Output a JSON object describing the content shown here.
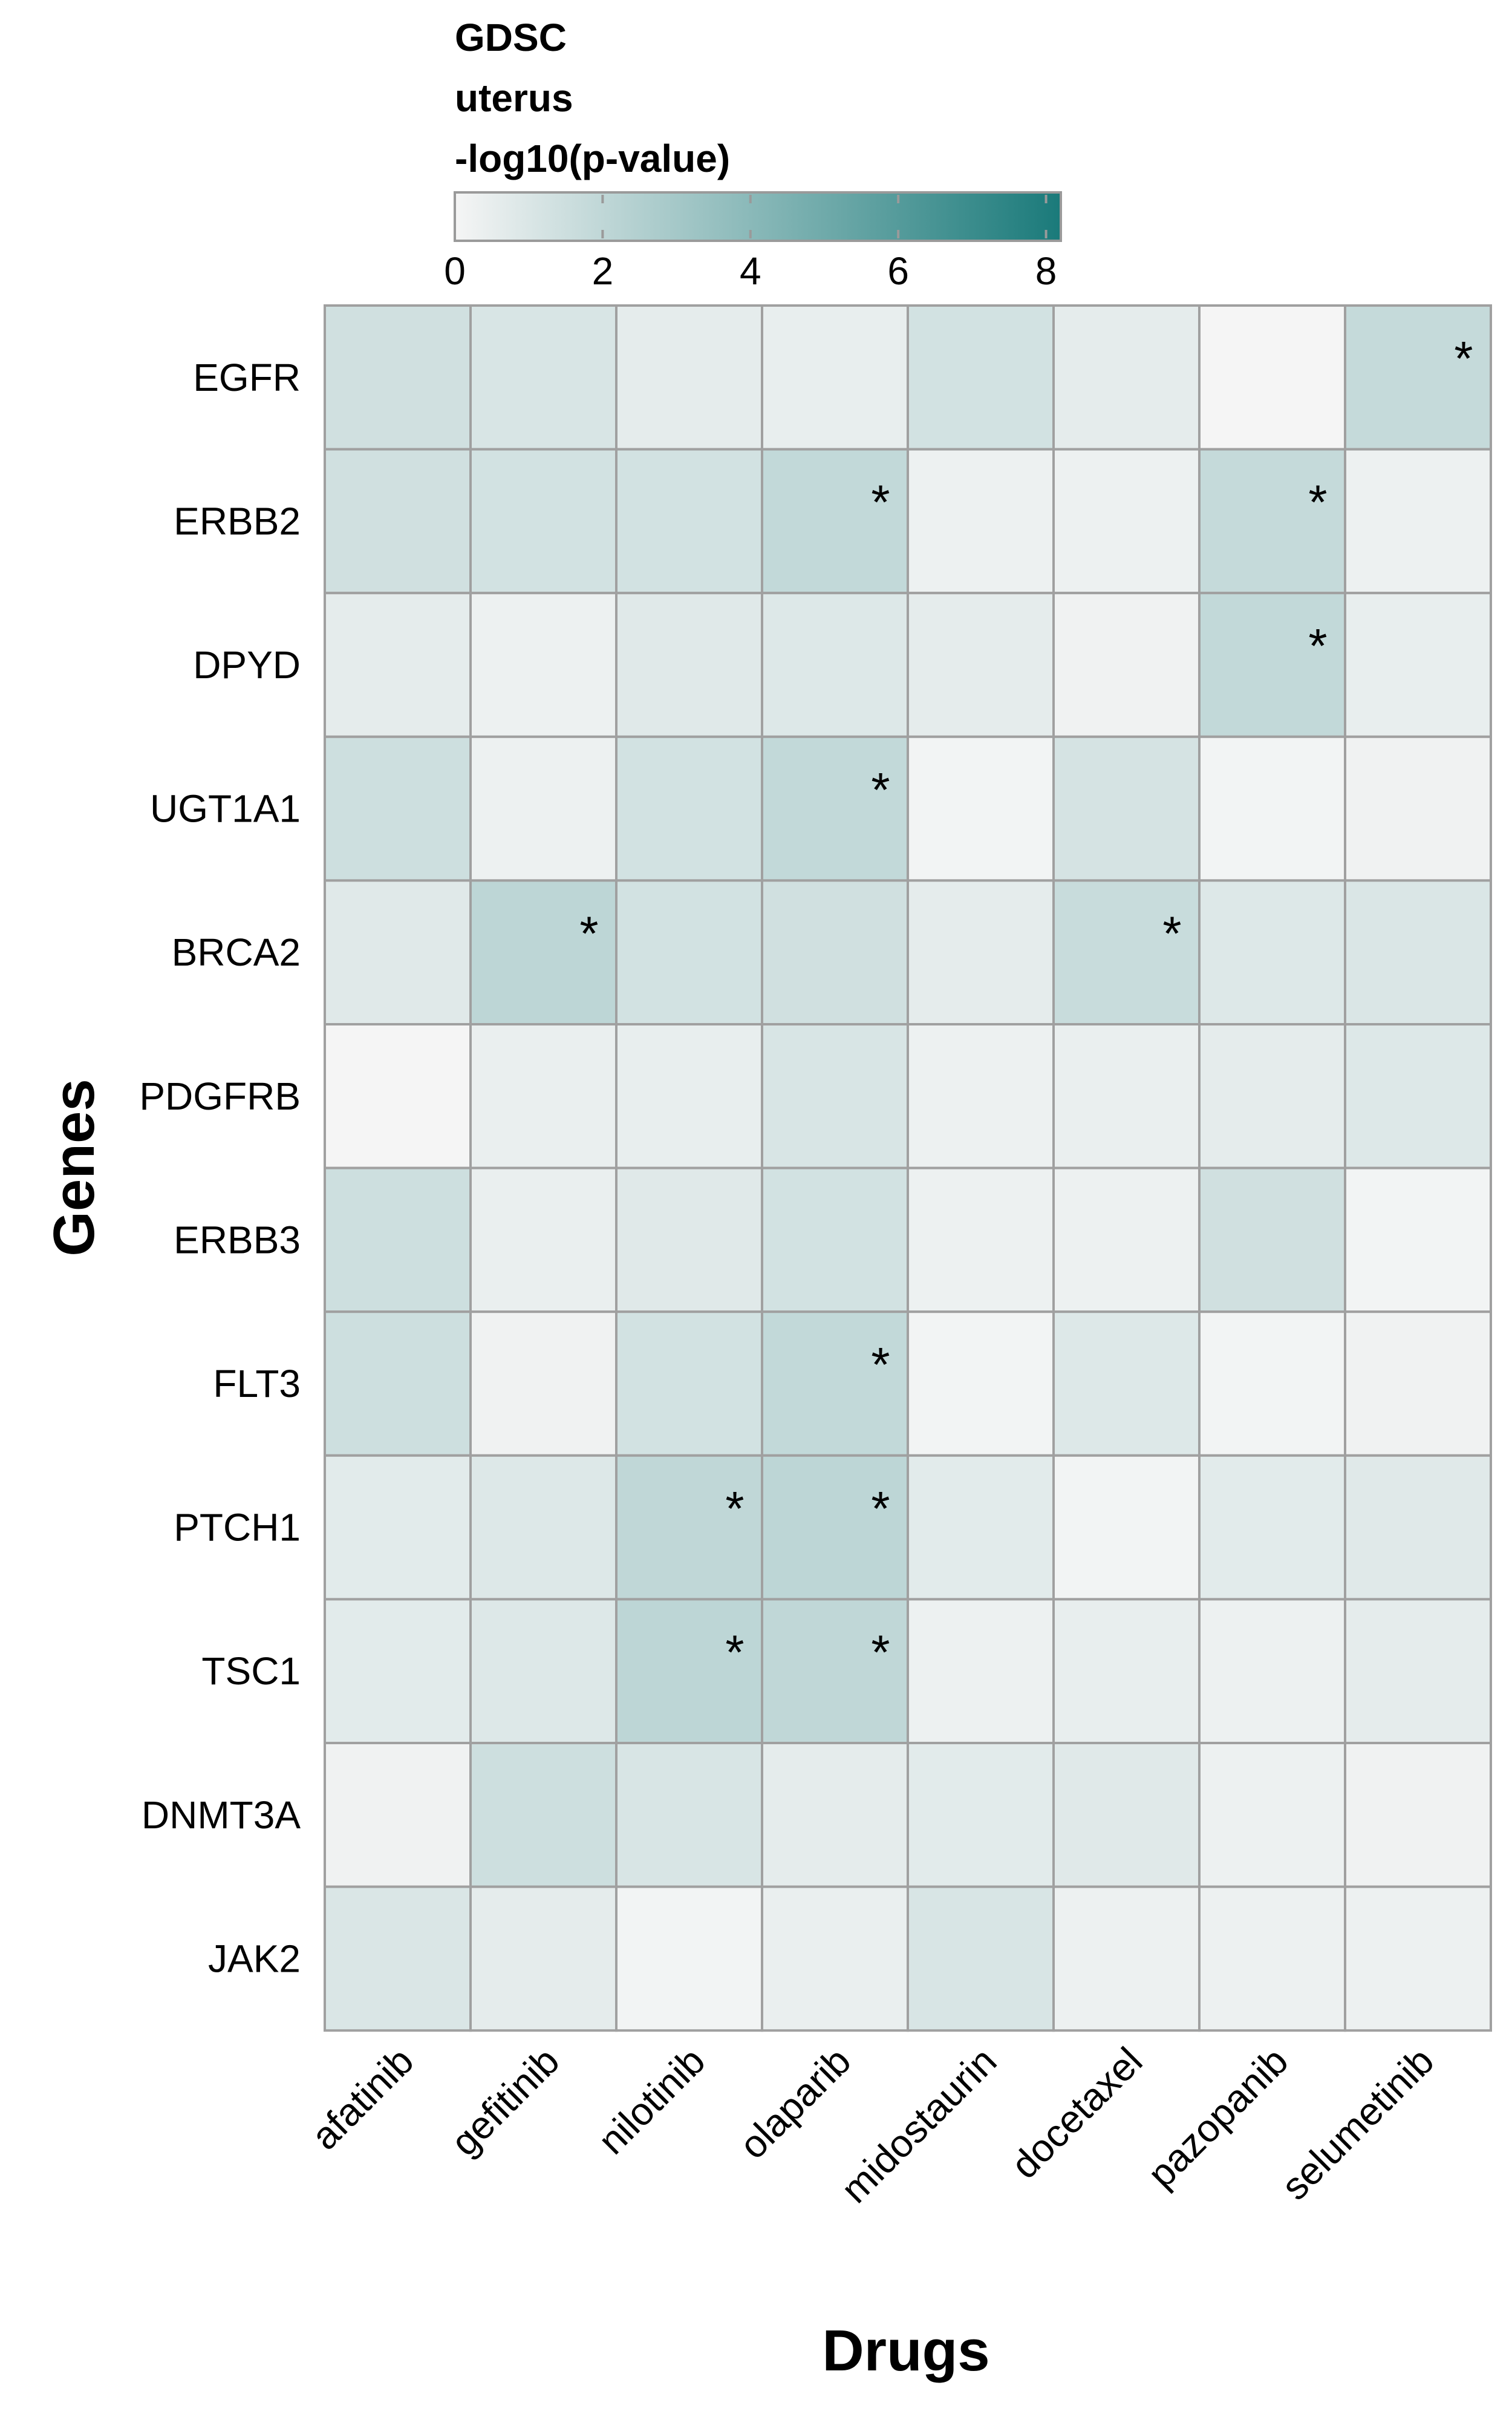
{
  "chart_data": {
    "type": "heatmap",
    "title": "",
    "xlabel": "Drugs",
    "ylabel": "Genes",
    "legend": {
      "title_lines": [
        "GDSC",
        "uterus",
        "-log10(p-value)"
      ],
      "ticks": [
        0,
        2,
        4,
        6,
        8
      ],
      "range": [
        0,
        8.2
      ],
      "color_low": "#f5f5f5",
      "color_high": "#1a7a7a",
      "placement": "top"
    },
    "x_categories": [
      "afatinib",
      "gefitinib",
      "nilotinib",
      "olaparib",
      "midostaurin",
      "docetaxel",
      "pazopanib",
      "selumetinib"
    ],
    "y_categories": [
      "EGFR",
      "ERBB2",
      "DPYD",
      "UGT1A1",
      "BRCA2",
      "PDGFRB",
      "ERBB3",
      "FLT3",
      "PTCH1",
      "TSC1",
      "DNMT3A",
      "JAK2"
    ],
    "values": [
      [
        1.4,
        1.1,
        0.6,
        0.5,
        1.3,
        0.6,
        0.0,
        1.8
      ],
      [
        1.4,
        1.3,
        1.3,
        1.9,
        0.3,
        0.3,
        1.8,
        0.3
      ],
      [
        0.6,
        0.3,
        0.8,
        0.9,
        0.6,
        0.2,
        1.9,
        0.5
      ],
      [
        1.5,
        0.3,
        1.3,
        1.9,
        0.1,
        1.2,
        0.1,
        0.2
      ],
      [
        0.8,
        2.1,
        1.3,
        1.4,
        0.6,
        1.7,
        0.9,
        1.0
      ],
      [
        0.0,
        0.4,
        0.5,
        1.1,
        0.3,
        0.4,
        0.6,
        0.9
      ],
      [
        1.5,
        0.4,
        0.8,
        1.3,
        0.3,
        0.3,
        1.4,
        0.1
      ],
      [
        1.5,
        0.2,
        1.3,
        1.9,
        0.1,
        0.9,
        0.1,
        0.2
      ],
      [
        0.7,
        0.9,
        2.0,
        2.1,
        0.7,
        0.1,
        0.7,
        0.8
      ],
      [
        0.7,
        0.9,
        2.1,
        2.0,
        0.3,
        0.5,
        0.3,
        0.6
      ],
      [
        0.2,
        1.5,
        1.1,
        0.6,
        0.7,
        0.8,
        0.3,
        0.2
      ],
      [
        1.0,
        0.6,
        0.1,
        0.4,
        1.1,
        0.3,
        0.3,
        0.3
      ]
    ],
    "significant": [
      [
        "EGFR",
        "selumetinib"
      ],
      [
        "ERBB2",
        "olaparib"
      ],
      [
        "ERBB2",
        "pazopanib"
      ],
      [
        "DPYD",
        "pazopanib"
      ],
      [
        "UGT1A1",
        "olaparib"
      ],
      [
        "BRCA2",
        "gefitinib"
      ],
      [
        "BRCA2",
        "docetaxel"
      ],
      [
        "FLT3",
        "olaparib"
      ],
      [
        "PTCH1",
        "nilotinib"
      ],
      [
        "PTCH1",
        "olaparib"
      ],
      [
        "TSC1",
        "nilotinib"
      ],
      [
        "TSC1",
        "olaparib"
      ]
    ],
    "significance_marker": "*",
    "grid": true
  }
}
